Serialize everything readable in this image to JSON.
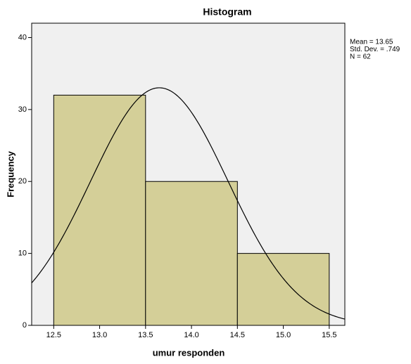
{
  "chart_data": {
    "type": "histogram",
    "title": "Histogram",
    "x_label": "umur responden",
    "y_label": "Frequency",
    "bins": [
      12.5,
      13.5,
      14.5,
      15.5
    ],
    "counts": [
      32,
      20,
      10
    ],
    "color": "#d4cf98",
    "edge_color": "#000000",
    "background": "#f0f0f0",
    "curve_color": "#000000",
    "xlim": [
      12.26,
      15.67
    ],
    "ylim": [
      0,
      42
    ],
    "xticks": [
      12.5,
      {
        "value": 13.0,
        "label": "13.0"
      },
      13.5,
      {
        "value": 14.0,
        "label": "14.0"
      },
      14.5,
      {
        "value": 15.0,
        "label": "15.0"
      },
      15.5
    ],
    "yticks": [
      0,
      10,
      20,
      30,
      40
    ],
    "stats": [
      {
        "value": 13.65,
        "label": "Mean = 13.65"
      },
      {
        "value": 0.749,
        "label": "Std. Dev. = .749"
      },
      {
        "value": 62,
        "label": "N = 62"
      }
    ],
    "grid": false
  }
}
